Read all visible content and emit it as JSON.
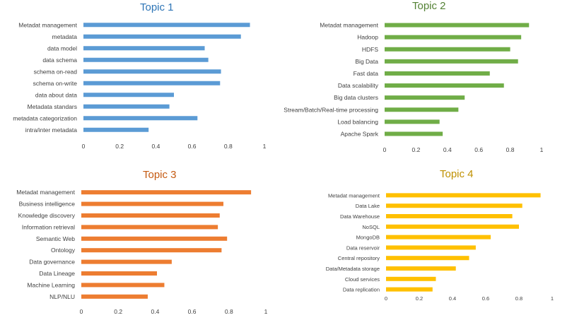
{
  "chart_data": [
    {
      "type": "bar",
      "orientation": "horizontal",
      "title": "Topic 1",
      "title_color": "#2E75B6",
      "bar_color": "#5B9BD5",
      "categories": [
        "Metadat management",
        "metadata",
        "data model",
        "data schema",
        "schema on-read",
        "schema on-write",
        "data about data",
        "Metadata standars",
        "metadata categorization",
        "intra/inter metadata"
      ],
      "values": [
        0.92,
        0.87,
        0.67,
        0.69,
        0.76,
        0.755,
        0.5,
        0.475,
        0.63,
        0.36
      ],
      "xlim": [
        0,
        1
      ],
      "xticks": [
        "0",
        "0.2",
        "0.4",
        "0.6",
        "0.8",
        "1"
      ],
      "grid": false
    },
    {
      "type": "bar",
      "orientation": "horizontal",
      "title": "Topic 2",
      "title_color": "#548235",
      "bar_color": "#70AD47",
      "categories": [
        "Metadat management",
        "Hadoop",
        "HDFS",
        "Big Data",
        "Fast data",
        "Data scalability",
        "Big data clusters",
        "Stream/Batch/Real-time processing",
        "Load balancing",
        "Apache Spark"
      ],
      "values": [
        0.92,
        0.87,
        0.8,
        0.85,
        0.67,
        0.76,
        0.51,
        0.47,
        0.35,
        0.37
      ],
      "xlim": [
        0,
        1
      ],
      "xticks": [
        "0",
        "0.2",
        "0.4",
        "0.6",
        "0.8",
        "1"
      ],
      "grid": false
    },
    {
      "type": "bar",
      "orientation": "horizontal",
      "title": "Topic 3",
      "title_color": "#C55A11",
      "bar_color": "#ED7D31",
      "categories": [
        "Metadat management",
        "Business intelligence",
        "Knowledge discovery",
        "Information retrieval",
        "Semantic Web",
        "Ontology",
        "Data governance",
        "Data Lineage",
        "Machine Learning",
        "NLP/NLU"
      ],
      "values": [
        0.92,
        0.77,
        0.75,
        0.74,
        0.79,
        0.76,
        0.49,
        0.41,
        0.45,
        0.36
      ],
      "xlim": [
        0,
        1
      ],
      "xticks": [
        "0",
        "0.2",
        "0.4",
        "0.6",
        "0.8",
        "1"
      ],
      "grid": false
    },
    {
      "type": "bar",
      "orientation": "horizontal",
      "title": "Topic 4",
      "title_color": "#BF9000",
      "bar_color": "#FFC000",
      "categories": [
        "Metadat management",
        "Data Lake",
        "Data Warehouse",
        "NoSQL",
        "MongoDB",
        "Data reservoir",
        "Central repository",
        "Data/Metadata storage",
        "Cloud services",
        "Data replication"
      ],
      "values": [
        0.93,
        0.82,
        0.76,
        0.8,
        0.63,
        0.54,
        0.5,
        0.42,
        0.3,
        0.28
      ],
      "xlim": [
        0,
        1
      ],
      "xticks": [
        "0",
        "0.2",
        "0.4",
        "0.6",
        "0.8",
        "1"
      ],
      "grid": false
    }
  ]
}
